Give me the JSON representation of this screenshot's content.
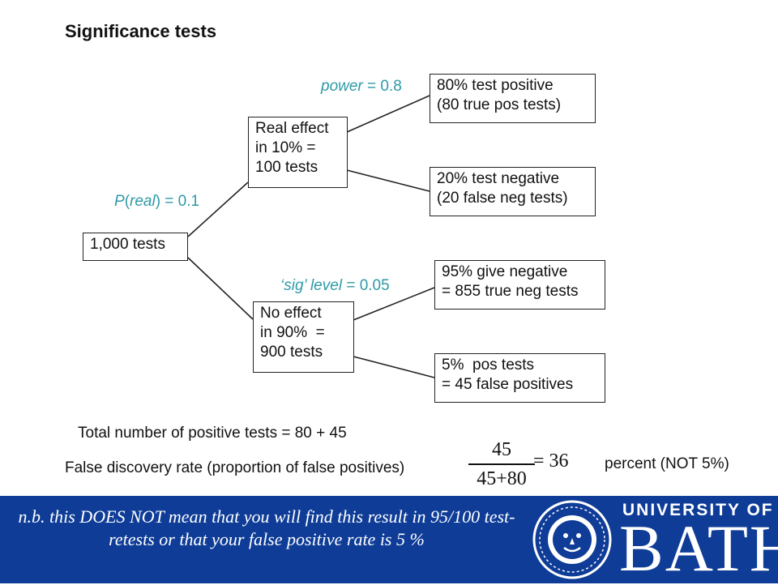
{
  "title": "Significance tests",
  "nodes": {
    "root": "1,000 tests",
    "real": "Real effect\nin 10% =\n100 tests",
    "none": "No effect\nin 90%  =\n900 tests",
    "true_pos": "80% test positive\n(80 true pos tests)",
    "false_neg": "20% test negative\n(20 false neg tests)",
    "true_neg": "95% give negative\n= 855 true neg tests",
    "false_pos": "5%  pos tests\n= 45 false positives"
  },
  "labels": {
    "p_real_var": "P",
    "p_real_open": "(",
    "p_real_word": "real",
    "p_real_rest": ") = 0.1",
    "power_word": "power",
    "power_rest": " = 0.8",
    "sig_word": "‘sig’ level",
    "sig_rest": " = 0.05"
  },
  "summary": {
    "total_positive": "Total number of positive tests = 80 + 45",
    "fdr_label": "False discovery rate (proportion of false positives)",
    "numerator": "45",
    "denominator": "45+80",
    "result": "= 36",
    "percent_note": "percent (NOT 5%)"
  },
  "footer": {
    "note": "n.b. this DOES NOT mean that you will find this result in 95/100 test-retests or that your false positive rate is 5 %",
    "logo_top": "UNIVERSITY OF",
    "logo_main": "BATH"
  },
  "colors": {
    "label_blue": "#2e9aa6",
    "footer_blue": "#0e3c97"
  }
}
